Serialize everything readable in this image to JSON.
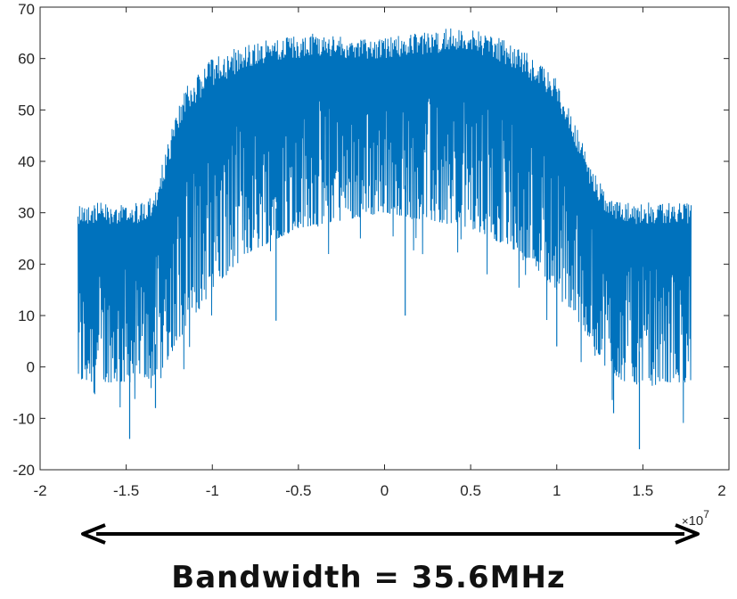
{
  "chart_data": {
    "type": "line",
    "title": "",
    "xlabel": "",
    "ylabel": "",
    "x_exponent_label": "10",
    "x_exponent_power": "7",
    "xlim": [
      -2,
      2
    ],
    "ylim": [
      -20,
      70
    ],
    "xticks": [
      "-2",
      "-1.5",
      "-1",
      "-0.5",
      "0",
      "0.5",
      "1",
      "1.5",
      "2"
    ],
    "yticks": [
      "70",
      "60",
      "50",
      "40",
      "30",
      "20",
      "10",
      "0",
      "-10",
      "-20"
    ],
    "grid": false,
    "series": [
      {
        "color": "#0072BD",
        "x_range": [
          -1.78,
          1.78
        ],
        "envelope_upper": {
          "x": [
            -1.78,
            -1.4,
            -1.33,
            -1.25,
            -1.15,
            -1.0,
            -0.8,
            -0.6,
            -0.4,
            -0.2,
            0.0,
            0.2,
            0.4,
            0.6,
            0.8,
            1.0,
            1.1,
            1.2,
            1.3,
            1.4,
            1.78
          ],
          "y": [
            32,
            32,
            34,
            45,
            55,
            60,
            63,
            64,
            65,
            64,
            64,
            65,
            66,
            65,
            62,
            56,
            48,
            39,
            33,
            32,
            32
          ]
        },
        "envelope_typical_lower": {
          "x": [
            -1.78,
            -1.4,
            -1.3,
            -1.2,
            -1.0,
            -0.8,
            -0.5,
            0.0,
            0.5,
            0.8,
            1.0,
            1.2,
            1.3,
            1.4,
            1.78
          ],
          "y": [
            -3,
            -3,
            -1,
            5,
            15,
            22,
            27,
            30,
            27,
            22,
            15,
            5,
            -1,
            -3,
            -3
          ]
        },
        "notable_minima": [
          {
            "x": -1.48,
            "y": -14
          },
          {
            "x": -1.33,
            "y": -8
          },
          {
            "x": -0.63,
            "y": 9
          },
          {
            "x": 0.12,
            "y": 10
          },
          {
            "x": 1.0,
            "y": 4
          },
          {
            "x": 1.33,
            "y": -9
          },
          {
            "x": 1.48,
            "y": -16
          }
        ]
      }
    ]
  },
  "annotation": {
    "arrow": "double-headed",
    "caption": "Bandwidth  =  35.6MHz"
  }
}
